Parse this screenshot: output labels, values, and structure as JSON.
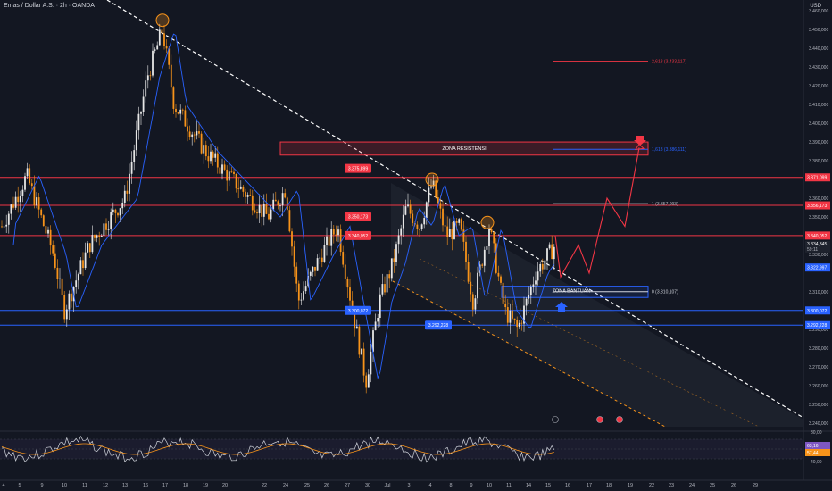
{
  "header": {
    "title": "Emas / Dollar A.S. · 2h · OANDA",
    "currency": "USD"
  },
  "colors": {
    "background": "#131722",
    "resistance_line": "#f23645",
    "support_line": "#2962ff",
    "candle_up": "#e6e6e6",
    "candle_down": "#f7931a",
    "moving_average": "#2962ff",
    "trendline": "#ffffff",
    "channel_line": "#f7931a",
    "rsi_line": "#d1d4dc",
    "rsi_ma": "#f7931a",
    "projection": "#f23645"
  },
  "chart_data": {
    "type": "candlestick",
    "price_axis_ticks": [
      "3.460,000",
      "3.450,000",
      "3.440,000",
      "3.430,000",
      "3.420,000",
      "3.410,000",
      "3.400,000",
      "3.390,000",
      "3.380,000",
      "3.360,000",
      "3.350,000",
      "3.330,000",
      "3.310,000",
      "3.290,000",
      "3.280,000",
      "3.270,000",
      "3.260,000",
      "3.250,000",
      "3.240,000"
    ],
    "time_axis_ticks": [
      "4",
      "5",
      "9",
      "10",
      "11",
      "12",
      "13",
      "16",
      "17",
      "18",
      "19",
      "20",
      "22",
      "24",
      "25",
      "26",
      "27",
      "30",
      "Jul",
      "3",
      "4",
      "8",
      "9",
      "10",
      "11",
      "14",
      "15",
      "16",
      "17",
      "18",
      "19",
      "22",
      "23",
      "24",
      "25",
      "26",
      "29"
    ],
    "price_range": [
      3238,
      3462
    ],
    "horizontal_levels": [
      {
        "label": "3.371,099",
        "price": 3371.099,
        "color": "#f23645"
      },
      {
        "label": "3.356,173",
        "price": 3356.173,
        "color": "#f23645"
      },
      {
        "label": "3.340,052",
        "price": 3340.052,
        "color": "#f23645"
      },
      {
        "label": "3.300,072",
        "price": 3300.072,
        "color": "#2962ff"
      },
      {
        "label": "3.292,228",
        "price": 3292.228,
        "color": "#2962ff"
      }
    ],
    "last_price_label": "3.334,345",
    "countdown_label": "59:11",
    "ma_label": "3.322,997",
    "zones": [
      {
        "label": "ZONA RESISTENSI",
        "top": 3390,
        "bottom": 3383,
        "color": "#f23645"
      },
      {
        "label": "ZONA BANTUAN",
        "top": 3313,
        "bottom": 3307,
        "color": "#2962ff"
      }
    ],
    "fibonacci": [
      {
        "label": "2,618 (3.433,117)",
        "price": 3433.117,
        "color": "#f23645"
      },
      {
        "label": "1,618 (3.386,111)",
        "price": 3386.111,
        "color": "#2962ff"
      },
      {
        "label": "1 (3.357,093)",
        "price": 3357.093,
        "color": "#b2b5be"
      },
      {
        "label": "0 (3.310,107)",
        "price": 3310.107,
        "color": "#d1d4dc"
      }
    ],
    "annotations": [
      {
        "label": "3.375,899",
        "price": 3375.899
      },
      {
        "label": "3.350,173",
        "price": 3350.173
      },
      {
        "label": "3.340,052",
        "price": 3340.052
      },
      {
        "label": "3.300,072",
        "price": 3300.072
      },
      {
        "label": "3.292,228",
        "price": 3292.228
      }
    ],
    "rsi": {
      "ticks": [
        "80,00",
        "60,00",
        "40,00"
      ],
      "value_labels": [
        "63,16",
        "57,44"
      ]
    }
  }
}
